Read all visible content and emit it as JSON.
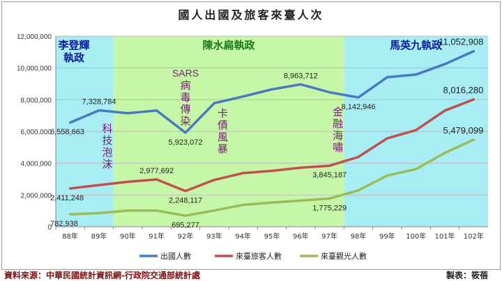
{
  "chart_data": {
    "type": "line",
    "title": "國人出國及旅客來臺人次",
    "categories": [
      "88年",
      "89年",
      "90年",
      "91年",
      "92年",
      "93年",
      "94年",
      "95年",
      "96年",
      "97年",
      "98年",
      "99年",
      "100年",
      "101年",
      "102年"
    ],
    "ylim": [
      0,
      12000000
    ],
    "yticks": [
      "0",
      "2,000,000",
      "4,000,000",
      "6,000,000",
      "8,000,000",
      "10,000,000",
      "12,000,000"
    ],
    "grid": true,
    "legend_position": "bottom",
    "series": [
      {
        "name": "出國人數",
        "color": "#4A78C2",
        "values": [
          6558663,
          7328784,
          7150000,
          7320000,
          5923072,
          7780000,
          8200000,
          8650000,
          8963712,
          8465000,
          8142946,
          9415000,
          9583000,
          10240000,
          11052908
        ]
      },
      {
        "name": "來臺旅客人數",
        "color": "#C0504D",
        "values": [
          2411248,
          2624000,
          2831000,
          2977692,
          2248117,
          2950000,
          3378000,
          3520000,
          3716000,
          3845187,
          4395000,
          5567000,
          6087000,
          7311000,
          8016280
        ]
      },
      {
        "name": "來臺觀光人數",
        "color": "#9BBB59",
        "values": [
          782938,
          860000,
          1020000,
          1020000,
          695277,
          1020000,
          1380000,
          1520000,
          1650000,
          1775229,
          2290000,
          3220000,
          3630000,
          4650000,
          5479099
        ]
      }
    ],
    "data_labels": [
      {
        "text": "6,558,663",
        "series": 0,
        "index": 0,
        "pos": "below"
      },
      {
        "text": "7,328,784",
        "series": 0,
        "index": 1,
        "pos": "above"
      },
      {
        "text": "5,923,072",
        "series": 0,
        "index": 4,
        "pos": "below"
      },
      {
        "text": "8,963,712",
        "series": 0,
        "index": 8,
        "pos": "above"
      },
      {
        "text": "8,142,946",
        "series": 0,
        "index": 10,
        "pos": "below"
      },
      {
        "text": "11,052,908",
        "series": 0,
        "index": 14,
        "pos": "above"
      },
      {
        "text": "2,411,248",
        "series": 1,
        "index": 0,
        "pos": "below"
      },
      {
        "text": "2,977,692",
        "series": 1,
        "index": 3,
        "pos": "above"
      },
      {
        "text": "2,248,117",
        "series": 1,
        "index": 4,
        "pos": "below"
      },
      {
        "text": "3,845,187",
        "series": 1,
        "index": 9,
        "pos": "below"
      },
      {
        "text": "8,016,280",
        "series": 1,
        "index": 14,
        "pos": "above"
      },
      {
        "text": "782,938",
        "series": 2,
        "index": 0,
        "pos": "below"
      },
      {
        "text": "695,277",
        "series": 2,
        "index": 4,
        "pos": "below"
      },
      {
        "text": "1,775,229",
        "series": 2,
        "index": 9,
        "pos": "below"
      },
      {
        "text": "5,479,099",
        "series": 2,
        "index": 14,
        "pos": "above"
      }
    ],
    "eras": [
      {
        "label": "李登輝\n執政",
        "from": 0,
        "to": 1.5,
        "color": "#A8ECF4",
        "text_color": "#0A1A9A"
      },
      {
        "label": "陳水扁執政",
        "from": 1.5,
        "to": 9.5,
        "color": "#C6F7A8",
        "text_color": "#1A7A1A"
      },
      {
        "label": "馬英九執政",
        "from": 9.5,
        "to": 14.5,
        "color": "#A8ECF4",
        "text_color": "#0A1A9A"
      }
    ],
    "annotations": [
      {
        "text": "SARS",
        "lines": [
          "病",
          "毒",
          "傳",
          "染"
        ],
        "index": 4,
        "color": "#7A1A7A"
      },
      {
        "text": "",
        "lines": [
          "科",
          "技",
          "泡",
          "沫"
        ],
        "index": 1,
        "color": "#7A1A7A"
      },
      {
        "text": "",
        "lines": [
          "卡",
          "債",
          "風",
          "暴"
        ],
        "index": 5,
        "color": "#7A1A7A"
      },
      {
        "text": "",
        "lines": [
          "金",
          "融",
          "海",
          "嘯"
        ],
        "index": 9,
        "color": "#7A1A7A"
      }
    ]
  },
  "footer": {
    "source": "資料來源：中華民國統計資訊網-行政院交通部統計處",
    "maker": "製表：筱蓓"
  }
}
